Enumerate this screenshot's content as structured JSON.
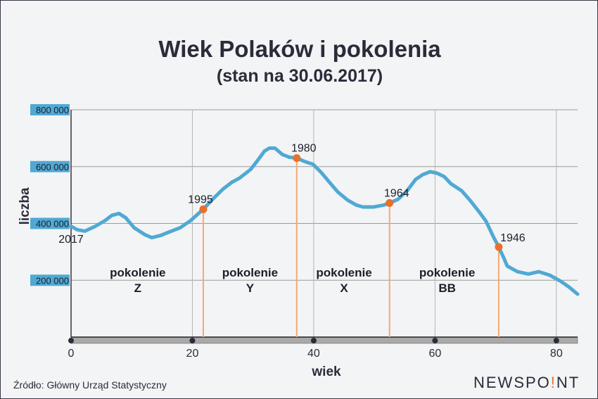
{
  "chart_data": {
    "type": "line",
    "title": "Wiek Polaków i pokolenia",
    "subtitle": "(stan na 30.06.2017)",
    "xlabel": "wiek",
    "ylabel": "liczba",
    "xlim": [
      0,
      83.5
    ],
    "ylim": [
      0,
      800000
    ],
    "xticks": [
      0,
      20,
      40,
      60,
      80
    ],
    "xtick_labels": [
      "0",
      "20",
      "40",
      "60",
      "80"
    ],
    "yticks": [
      200000,
      400000,
      600000,
      800000
    ],
    "ytick_labels": [
      "200 000",
      "400 000",
      "600 000",
      "800 000"
    ],
    "grid": true,
    "series": [
      {
        "name": "liczba",
        "color": "#4fa9d4",
        "x": [
          0,
          1,
          2.3,
          4,
          5.6,
          6.7,
          7.9,
          9,
          10.4,
          12.2,
          13.3,
          14.8,
          16.2,
          18,
          19.7,
          21.8,
          23.2,
          25,
          26.5,
          27.8,
          29.6,
          30.7,
          31.9,
          32.7,
          33.6,
          34.8,
          36,
          37.2,
          38.5,
          39.9,
          41.2,
          42.6,
          44,
          45.6,
          47,
          48.1,
          49.9,
          51.6,
          52.5,
          53.9,
          55.4,
          56.8,
          58,
          59.2,
          60.3,
          61.5,
          62.6,
          64.4,
          65.9,
          67.3,
          68.4,
          69.6,
          70.5,
          71.3,
          71.9,
          73.6,
          75.4,
          77.1,
          78.9,
          80.6,
          82.1,
          83.5
        ],
        "y": [
          390000,
          378000,
          373000,
          390000,
          410000,
          428000,
          435000,
          420000,
          385000,
          360000,
          350000,
          358000,
          370000,
          385000,
          410000,
          450000,
          482000,
          520000,
          545000,
          560000,
          590000,
          620000,
          655000,
          665000,
          665000,
          643000,
          633000,
          630000,
          618000,
          608000,
          580000,
          545000,
          510000,
          482000,
          465000,
          458000,
          458000,
          465000,
          472000,
          485000,
          515000,
          555000,
          572000,
          582000,
          577000,
          565000,
          540000,
          515000,
          478000,
          440000,
          408000,
          354000,
          317000,
          280000,
          250000,
          230000,
          222000,
          230000,
          218000,
          198000,
          176000,
          151000
        ]
      }
    ],
    "markers": [
      {
        "label": "1995",
        "x": 21.8,
        "y": 450000
      },
      {
        "label": "1980",
        "x": 37.2,
        "y": 630000
      },
      {
        "label": "1964",
        "x": 52.5,
        "y": 472000
      },
      {
        "label": "1946",
        "x": 70.5,
        "y": 317000
      }
    ],
    "start_label": "2017",
    "generations": [
      {
        "line1": "pokolenie",
        "line2": "Z",
        "x": 11
      },
      {
        "line1": "pokolenie",
        "line2": "Y",
        "x": 29.5
      },
      {
        "line1": "pokolenie",
        "line2": "X",
        "x": 45
      },
      {
        "line1": "pokolenie",
        "line2": "BB",
        "x": 62
      }
    ],
    "marker_color": "#e8702a",
    "line_color": "#4fa9d4"
  },
  "footer": {
    "source": "Źródło: Główny Urząd Statystyczny",
    "logo_a": "NEWSPO",
    "logo_b": "!",
    "logo_c": "NT"
  }
}
